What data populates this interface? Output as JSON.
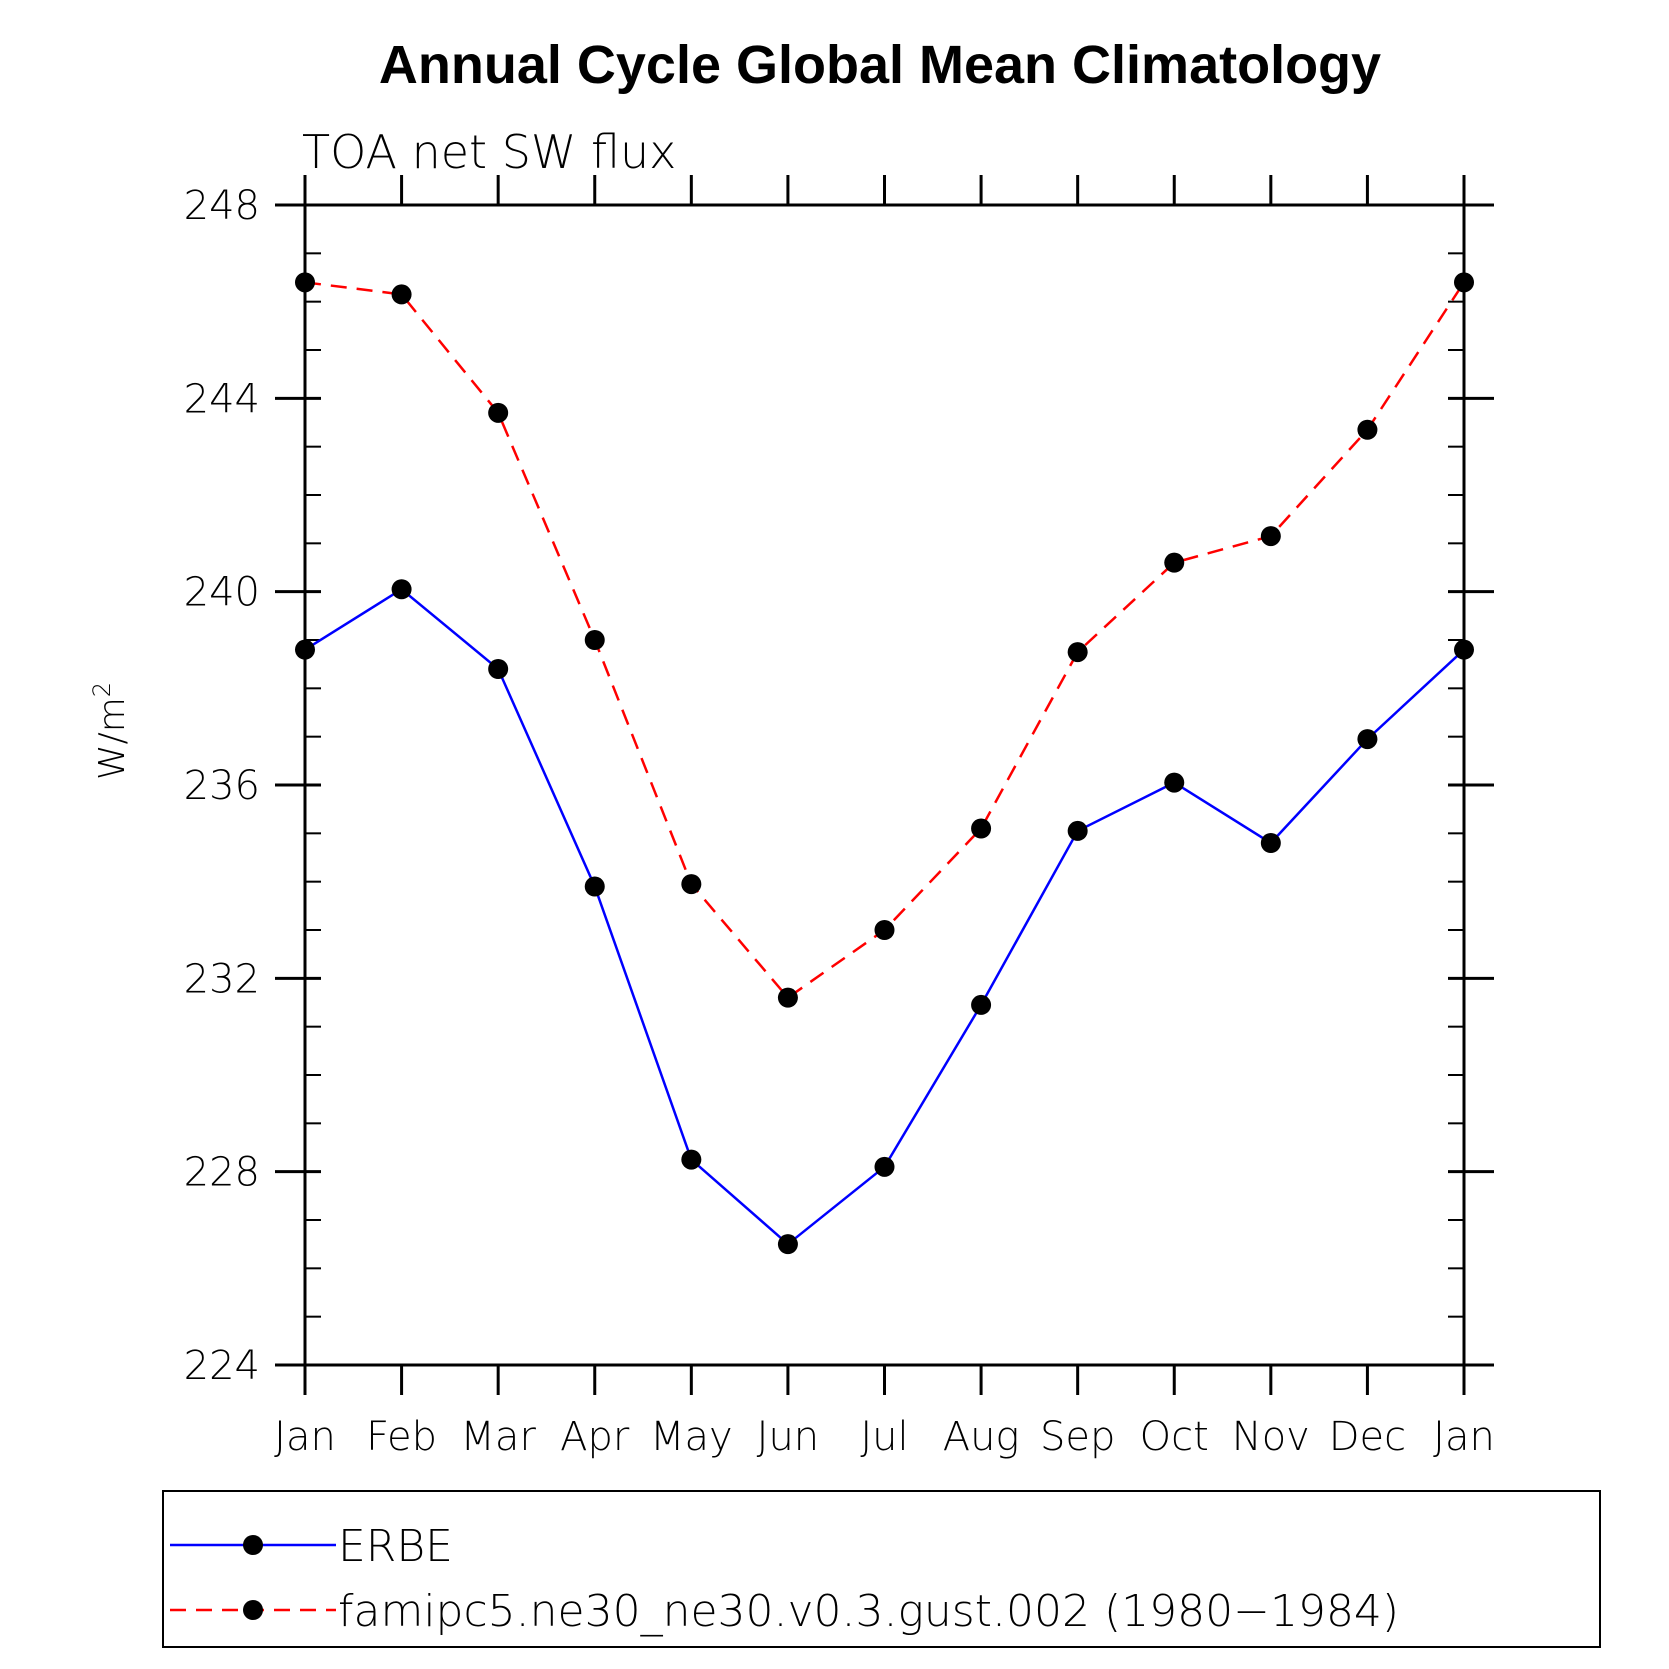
{
  "chart_data": {
    "type": "line",
    "title": "Annual Cycle Global Mean Climatology",
    "subtitle": "TOA net SW flux",
    "xlabel": "",
    "ylabel": "W/m",
    "ylabel_sup": "2",
    "categories": [
      "Jan",
      "Feb",
      "Mar",
      "Apr",
      "May",
      "Jun",
      "Jul",
      "Aug",
      "Sep",
      "Oct",
      "Nov",
      "Dec",
      "Jan"
    ],
    "yticks": [
      "224",
      "228",
      "232",
      "236",
      "240",
      "244",
      "248"
    ],
    "ylim": [
      224,
      248
    ],
    "series": [
      {
        "name": "ERBE",
        "color": "#0000ff",
        "line_style": "solid",
        "marker": "filled-circle",
        "values": [
          238.8,
          240.05,
          238.4,
          233.9,
          228.25,
          226.5,
          228.1,
          231.45,
          235.05,
          236.05,
          234.8,
          236.95,
          238.8
        ]
      },
      {
        "name": "famipc5.ne30_ne30.v0.3.gust.002 (1980−1984)",
        "color": "#ff0000",
        "line_style": "dashed",
        "marker": "filled-circle",
        "values": [
          246.4,
          246.15,
          243.7,
          239.0,
          233.95,
          231.6,
          233.0,
          235.1,
          238.75,
          240.6,
          241.15,
          243.35,
          246.4
        ]
      }
    ],
    "grid": false,
    "legend_position": "bottom"
  }
}
